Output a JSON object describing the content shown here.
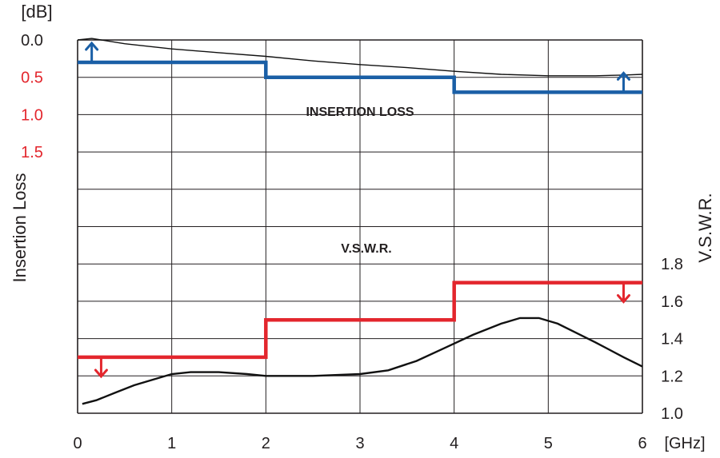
{
  "chart_data": {
    "type": "line",
    "x_unit": "[GHz]",
    "x_ticks": [
      "0",
      "1",
      "2",
      "3",
      "4",
      "5",
      "6"
    ],
    "xlim": [
      0,
      6
    ],
    "grid": true,
    "colors": {
      "grid": "#231f20",
      "measured": "#111111",
      "insertion_loss_limit": "#1a5fa6",
      "vswr_limit": "#e3262d",
      "axis_text": "#231f20",
      "left_ticks_red": "#e3262d"
    },
    "left_axis": {
      "title": "Insertion Loss",
      "unit": "[dB]",
      "ticks": [
        {
          "label": "0.0",
          "value": 0.0,
          "color": "#231f20"
        },
        {
          "label": "0.5",
          "value": 0.5,
          "color": "#e3262d"
        },
        {
          "label": "1.0",
          "value": 1.0,
          "color": "#e3262d"
        },
        {
          "label": "1.5",
          "value": 1.5,
          "color": "#e3262d"
        }
      ],
      "inverted": true
    },
    "right_axis": {
      "title": "V.S.W.R.",
      "ticks": [
        {
          "label": "1.0",
          "value": 1.0
        },
        {
          "label": "1.2",
          "value": 1.2
        },
        {
          "label": "1.4",
          "value": 1.4
        },
        {
          "label": "1.6",
          "value": 1.6
        },
        {
          "label": "1.8",
          "value": 1.8
        }
      ]
    },
    "annotations": {
      "insertion_loss": "INSERTION LOSS",
      "vswr": "V.S.W.R."
    },
    "series": [
      {
        "axis": "left",
        "role": "measured",
        "x": [
          0.0,
          0.15,
          0.5,
          1.0,
          1.5,
          2.0,
          2.5,
          3.0,
          3.5,
          4.0,
          4.5,
          5.0,
          5.5,
          5.8,
          6.0
        ],
        "values": [
          0.0,
          -0.02,
          0.05,
          0.12,
          0.17,
          0.22,
          0.28,
          0.33,
          0.37,
          0.42,
          0.46,
          0.48,
          0.48,
          0.47,
          0.46
        ]
      },
      {
        "axis": "left",
        "role": "limit",
        "x": [
          0,
          2,
          2,
          4,
          4,
          6
        ],
        "values": [
          0.3,
          0.3,
          0.5,
          0.5,
          0.7,
          0.7
        ]
      },
      {
        "axis": "right",
        "role": "measured",
        "x": [
          0.05,
          0.2,
          0.4,
          0.6,
          0.8,
          1.0,
          1.2,
          1.5,
          1.8,
          2.0,
          2.5,
          3.0,
          3.3,
          3.6,
          3.9,
          4.2,
          4.5,
          4.7,
          4.9,
          5.1,
          5.3,
          5.5,
          5.8,
          6.0
        ],
        "values": [
          1.05,
          1.07,
          1.11,
          1.15,
          1.18,
          1.21,
          1.22,
          1.22,
          1.21,
          1.2,
          1.2,
          1.21,
          1.23,
          1.28,
          1.35,
          1.42,
          1.48,
          1.51,
          1.51,
          1.48,
          1.43,
          1.38,
          1.3,
          1.25
        ]
      },
      {
        "axis": "right",
        "role": "limit",
        "x": [
          0,
          2,
          2,
          4,
          4,
          6
        ],
        "values": [
          1.3,
          1.3,
          1.5,
          1.5,
          1.7,
          1.7
        ]
      }
    ],
    "limit_arrows": [
      {
        "axis": "left",
        "x": 0.15,
        "direction": "up"
      },
      {
        "axis": "left",
        "x": 5.8,
        "direction": "up"
      },
      {
        "axis": "right",
        "x": 0.25,
        "direction": "down"
      },
      {
        "axis": "right",
        "x": 5.8,
        "direction": "down"
      }
    ]
  }
}
